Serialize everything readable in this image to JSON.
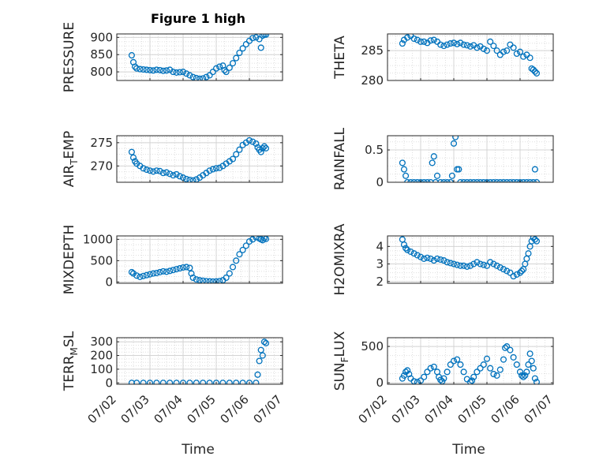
{
  "figure": {
    "title": "Figure 1 high",
    "x_ticks": [
      "07/02",
      "07/03",
      "07/04",
      "07/05",
      "07/06",
      "07/07"
    ],
    "x_label": "Time"
  },
  "colors": {
    "marker": "#0072BD",
    "axis": "#262626",
    "grid": "#dfdfdf"
  },
  "chart_data": [
    {
      "type": "scatter",
      "name": "PRESSURE",
      "ylabel": "PRESSURE",
      "ylim": [
        775,
        910
      ],
      "yticks": [
        800,
        850,
        900
      ],
      "grid": true,
      "x": [
        2.45,
        2.5,
        2.55,
        2.6,
        2.7,
        2.8,
        2.9,
        3.0,
        3.1,
        3.2,
        3.3,
        3.4,
        3.5,
        3.6,
        3.7,
        3.8,
        3.9,
        4.0,
        4.1,
        4.2,
        4.3,
        4.4,
        4.5,
        4.6,
        4.7,
        4.8,
        4.9,
        5.0,
        5.1,
        5.2,
        5.25,
        5.3,
        5.4,
        5.5,
        5.6,
        5.7,
        5.8,
        5.9,
        6.0,
        6.1,
        6.2,
        6.3,
        6.35,
        6.4,
        6.45,
        6.5
      ],
      "y": [
        848,
        828,
        815,
        810,
        808,
        807,
        806,
        805,
        804,
        806,
        805,
        803,
        804,
        806,
        800,
        798,
        799,
        800,
        795,
        790,
        785,
        782,
        780,
        781,
        785,
        790,
        800,
        810,
        815,
        818,
        805,
        800,
        812,
        825,
        840,
        855,
        868,
        880,
        890,
        898,
        900,
        895,
        870,
        905,
        908,
        908
      ]
    },
    {
      "type": "scatter",
      "name": "THETA",
      "ylabel": "THETA",
      "ylim": [
        280,
        287.8
      ],
      "yticks": [
        280,
        285
      ],
      "grid": true,
      "x": [
        2.45,
        2.5,
        2.6,
        2.7,
        2.8,
        2.9,
        3.0,
        3.1,
        3.2,
        3.3,
        3.4,
        3.5,
        3.6,
        3.7,
        3.8,
        3.9,
        4.0,
        4.1,
        4.2,
        4.3,
        4.4,
        4.5,
        4.6,
        4.7,
        4.8,
        4.9,
        5.0,
        5.1,
        5.2,
        5.3,
        5.4,
        5.5,
        5.6,
        5.7,
        5.8,
        5.9,
        6.0,
        6.1,
        6.2,
        6.3,
        6.35,
        6.4,
        6.45,
        6.5
      ],
      "y": [
        286.2,
        286.8,
        287.2,
        287.5,
        287.0,
        286.8,
        286.5,
        286.5,
        286.3,
        286.7,
        286.8,
        286.5,
        286.0,
        285.8,
        286.0,
        286.2,
        286.3,
        286.1,
        286.3,
        286.0,
        285.9,
        285.7,
        285.9,
        285.5,
        285.7,
        285.3,
        285.0,
        286.5,
        285.8,
        285.0,
        284.3,
        284.8,
        285.0,
        286.0,
        285.5,
        284.5,
        284.8,
        284.0,
        284.3,
        283.8,
        282.0,
        281.8,
        281.5,
        281.2
      ]
    },
    {
      "type": "scatter",
      "name": "AIR_TEMP",
      "ylabel": "AIR_TEMP",
      "ylabel_main": "AIR",
      "ylabel_sub": "T",
      "ylabel_rest": "EMP",
      "ylim": [
        266.5,
        276.5
      ],
      "yticks": [
        270,
        275
      ],
      "grid": true,
      "x": [
        2.45,
        2.5,
        2.55,
        2.6,
        2.7,
        2.8,
        2.9,
        3.0,
        3.1,
        3.2,
        3.3,
        3.4,
        3.5,
        3.6,
        3.7,
        3.8,
        3.9,
        4.0,
        4.1,
        4.2,
        4.3,
        4.4,
        4.5,
        4.6,
        4.7,
        4.8,
        4.9,
        5.0,
        5.1,
        5.2,
        5.3,
        5.4,
        5.5,
        5.6,
        5.7,
        5.8,
        5.9,
        6.0,
        6.1,
        6.2,
        6.25,
        6.3,
        6.35,
        6.4,
        6.45,
        6.5
      ],
      "y": [
        273.0,
        271.8,
        271.0,
        270.5,
        270.0,
        269.5,
        269.2,
        269.0,
        268.8,
        269.0,
        268.9,
        268.5,
        268.6,
        268.3,
        268.0,
        268.2,
        267.8,
        267.5,
        267.2,
        267.0,
        266.9,
        267.1,
        267.5,
        268.0,
        268.5,
        269.0,
        269.3,
        269.5,
        269.6,
        270.0,
        270.5,
        271.0,
        271.5,
        272.5,
        273.5,
        274.5,
        275.0,
        275.5,
        275.2,
        274.8,
        274.0,
        273.5,
        273.0,
        273.8,
        274.2,
        273.8
      ]
    },
    {
      "type": "scatter",
      "name": "RAINFALL",
      "ylabel": "RAINFALL",
      "ylim": [
        0,
        0.72
      ],
      "yticks": [
        0,
        0.5
      ],
      "grid": true,
      "x": [
        2.45,
        2.5,
        2.55,
        2.6,
        2.7,
        2.8,
        2.9,
        3.0,
        3.1,
        3.2,
        3.3,
        3.35,
        3.4,
        3.45,
        3.5,
        3.6,
        3.7,
        3.8,
        3.9,
        3.95,
        4.0,
        4.05,
        4.1,
        4.15,
        4.2,
        4.3,
        4.4,
        4.5,
        4.6,
        4.7,
        4.8,
        4.9,
        5.0,
        5.1,
        5.2,
        5.3,
        5.4,
        5.5,
        5.6,
        5.7,
        5.8,
        5.9,
        6.0,
        6.1,
        6.2,
        6.3,
        6.4,
        6.45,
        6.5
      ],
      "y": [
        0.3,
        0.2,
        0.1,
        0,
        0,
        0,
        0,
        0,
        0,
        0,
        0,
        0.3,
        0.4,
        0,
        0.1,
        0,
        0,
        0,
        0,
        0.1,
        0.6,
        0.7,
        0.2,
        0.2,
        0,
        0,
        0,
        0,
        0,
        0,
        0,
        0,
        0,
        0,
        0,
        0,
        0,
        0,
        0,
        0,
        0,
        0,
        0,
        0,
        0,
        0,
        0,
        0.2,
        0
      ]
    },
    {
      "type": "scatter",
      "name": "MIXDEPTH",
      "ylabel": "MIXDEPTH",
      "ylim": [
        -30,
        1080
      ],
      "yticks": [
        0,
        500,
        1000
      ],
      "grid": true,
      "x": [
        2.45,
        2.5,
        2.6,
        2.7,
        2.8,
        2.9,
        3.0,
        3.1,
        3.2,
        3.3,
        3.4,
        3.5,
        3.6,
        3.7,
        3.8,
        3.9,
        4.0,
        4.1,
        4.2,
        4.25,
        4.3,
        4.4,
        4.5,
        4.6,
        4.7,
        4.8,
        4.9,
        5.0,
        5.1,
        5.2,
        5.3,
        5.4,
        5.5,
        5.6,
        5.7,
        5.8,
        5.9,
        6.0,
        6.1,
        6.2,
        6.3,
        6.35,
        6.4,
        6.45,
        6.5
      ],
      "y": [
        230,
        200,
        150,
        120,
        140,
        160,
        180,
        200,
        210,
        230,
        250,
        240,
        260,
        280,
        300,
        320,
        340,
        350,
        330,
        200,
        100,
        60,
        40,
        30,
        20,
        15,
        10,
        12,
        20,
        40,
        100,
        200,
        350,
        500,
        650,
        750,
        850,
        950,
        1000,
        1050,
        1020,
        1000,
        980,
        1030,
        1010
      ]
    },
    {
      "type": "scatter",
      "name": "H2OMIXRA",
      "ylabel": "H2OMIXRA",
      "ylim": [
        1.9,
        4.6
      ],
      "yticks": [
        2,
        3,
        4
      ],
      "grid": true,
      "x": [
        2.45,
        2.5,
        2.55,
        2.6,
        2.7,
        2.8,
        2.9,
        3.0,
        3.1,
        3.2,
        3.3,
        3.4,
        3.5,
        3.6,
        3.7,
        3.8,
        3.9,
        4.0,
        4.1,
        4.2,
        4.3,
        4.4,
        4.5,
        4.6,
        4.7,
        4.8,
        4.9,
        5.0,
        5.1,
        5.2,
        5.3,
        5.4,
        5.5,
        5.6,
        5.7,
        5.8,
        5.9,
        6.0,
        6.05,
        6.1,
        6.15,
        6.2,
        6.25,
        6.3,
        6.35,
        6.4,
        6.45,
        6.5
      ],
      "y": [
        4.4,
        4.1,
        3.9,
        3.8,
        3.7,
        3.6,
        3.5,
        3.4,
        3.3,
        3.35,
        3.3,
        3.2,
        3.3,
        3.25,
        3.2,
        3.1,
        3.05,
        3.0,
        2.95,
        2.9,
        2.9,
        2.85,
        2.9,
        3.0,
        3.1,
        3.0,
        2.95,
        2.9,
        3.1,
        3.0,
        2.9,
        2.8,
        2.7,
        2.6,
        2.5,
        2.3,
        2.4,
        2.5,
        2.6,
        2.7,
        3.0,
        3.3,
        3.6,
        4.0,
        4.3,
        4.5,
        4.4,
        4.3
      ]
    },
    {
      "type": "scatter",
      "name": "TERR_MSL",
      "ylabel": "TERR_MSL",
      "ylabel_main": "TERR",
      "ylabel_sub": "M",
      "ylabel_rest": "SL",
      "ylim": [
        -10,
        330
      ],
      "yticks": [
        0,
        100,
        200,
        300
      ],
      "grid": true,
      "x": [
        2.45,
        2.6,
        2.8,
        3.0,
        3.2,
        3.4,
        3.6,
        3.8,
        4.0,
        4.2,
        4.4,
        4.6,
        4.8,
        5.0,
        5.2,
        5.4,
        5.6,
        5.8,
        6.0,
        6.2,
        6.25,
        6.3,
        6.35,
        6.4,
        6.45,
        6.5
      ],
      "y": [
        0,
        0,
        0,
        0,
        0,
        0,
        0,
        0,
        0,
        0,
        0,
        0,
        0,
        0,
        0,
        0,
        0,
        0,
        0,
        0,
        60,
        160,
        240,
        200,
        300,
        290
      ]
    },
    {
      "type": "scatter",
      "name": "SUN_FLUX",
      "ylabel": "SUN_FLUX",
      "ylabel_main": "SUN",
      "ylabel_sub": "F",
      "ylabel_rest": "LUX",
      "ylim": [
        -20,
        620
      ],
      "yticks": [
        0,
        500
      ],
      "grid": true,
      "x": [
        2.45,
        2.5,
        2.55,
        2.6,
        2.65,
        2.7,
        2.8,
        2.9,
        3.0,
        3.1,
        3.2,
        3.3,
        3.4,
        3.5,
        3.55,
        3.6,
        3.65,
        3.7,
        3.8,
        3.9,
        4.0,
        4.1,
        4.2,
        4.3,
        4.4,
        4.5,
        4.55,
        4.6,
        4.7,
        4.8,
        4.9,
        5.0,
        5.1,
        5.2,
        5.3,
        5.4,
        5.5,
        5.55,
        5.6,
        5.7,
        5.8,
        5.9,
        6.0,
        6.05,
        6.1,
        6.15,
        6.2,
        6.25,
        6.3,
        6.35,
        6.4,
        6.45,
        6.5
      ],
      "y": [
        60,
        100,
        150,
        170,
        120,
        60,
        20,
        10,
        30,
        80,
        150,
        200,
        220,
        150,
        80,
        40,
        20,
        60,
        150,
        250,
        300,
        320,
        250,
        150,
        50,
        10,
        30,
        80,
        150,
        200,
        250,
        330,
        200,
        120,
        100,
        180,
        320,
        480,
        500,
        450,
        350,
        250,
        150,
        100,
        80,
        100,
        150,
        250,
        400,
        300,
        200,
        60,
        10
      ]
    }
  ]
}
